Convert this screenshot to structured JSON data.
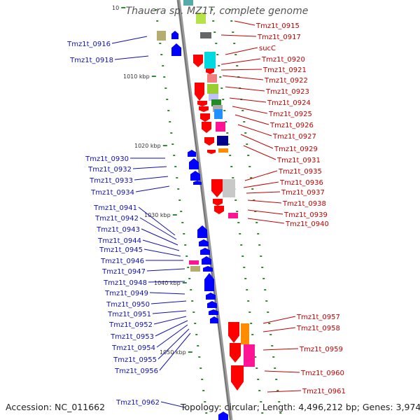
{
  "title": "Thauera sp. MZ1T, complete genome",
  "footer": {
    "accession": "Accession: NC_011662",
    "summary": "Topology: circular; Length: 4,496,212 bp; Genes: 3,974"
  },
  "scale_labels": [
    "10",
    "1010 kbp",
    "1020 kbp",
    "1030 kbp",
    "1040 kbp",
    "1050 kbp"
  ],
  "right_labels": [
    "Tmz1t_0915",
    "Tmz1t_0917",
    "sucC",
    "Tmz1t_0920",
    "Tmz1t_0921",
    "Tmz1t_0922",
    "Tmz1t_0923",
    "Tmz1t_0924",
    "Tmz1t_0925",
    "Tmz1t_0926",
    "Tmz1t_0927",
    "Tmz1t_0929",
    "Tmz1t_0931",
    "Tmz1t_0935",
    "Tmz1t_0936",
    "Tmz1t_0937",
    "Tmz1t_0938",
    "Tmz1t_0939",
    "Tmz1t_0940",
    "Tmz1t_0957",
    "Tmz1t_0958",
    "Tmz1t_0959",
    "Tmz1t_0960",
    "Tmz1t_0961"
  ],
  "left_labels": [
    "Tmz1t_0916",
    "Tmz1t_0918",
    "Tmz1t_0930",
    "Tmz1t_0932",
    "Tmz1t_0933",
    "Tmz1t_0934",
    "Tmz1t_0941",
    "Tmz1t_0942",
    "Tmz1t_0943",
    "Tmz1t_0944",
    "Tmz1t_0945",
    "Tmz1t_0946",
    "Tmz1t_0947",
    "Tmz1t_0948",
    "Tmz1t_0949",
    "Tmz1t_0950",
    "Tmz1t_0951",
    "Tmz1t_0952",
    "Tmz1t_0953",
    "Tmz1t_0954",
    "Tmz1t_0955",
    "Tmz1t_0956",
    "Tmz1t_0962"
  ],
  "colors": {
    "forward": "#ff0000",
    "reverse": "#0000ff",
    "backbone": "#888888",
    "tick": "#2e8b2e",
    "right_label": "#c40000",
    "left_label": "#1010b0"
  }
}
